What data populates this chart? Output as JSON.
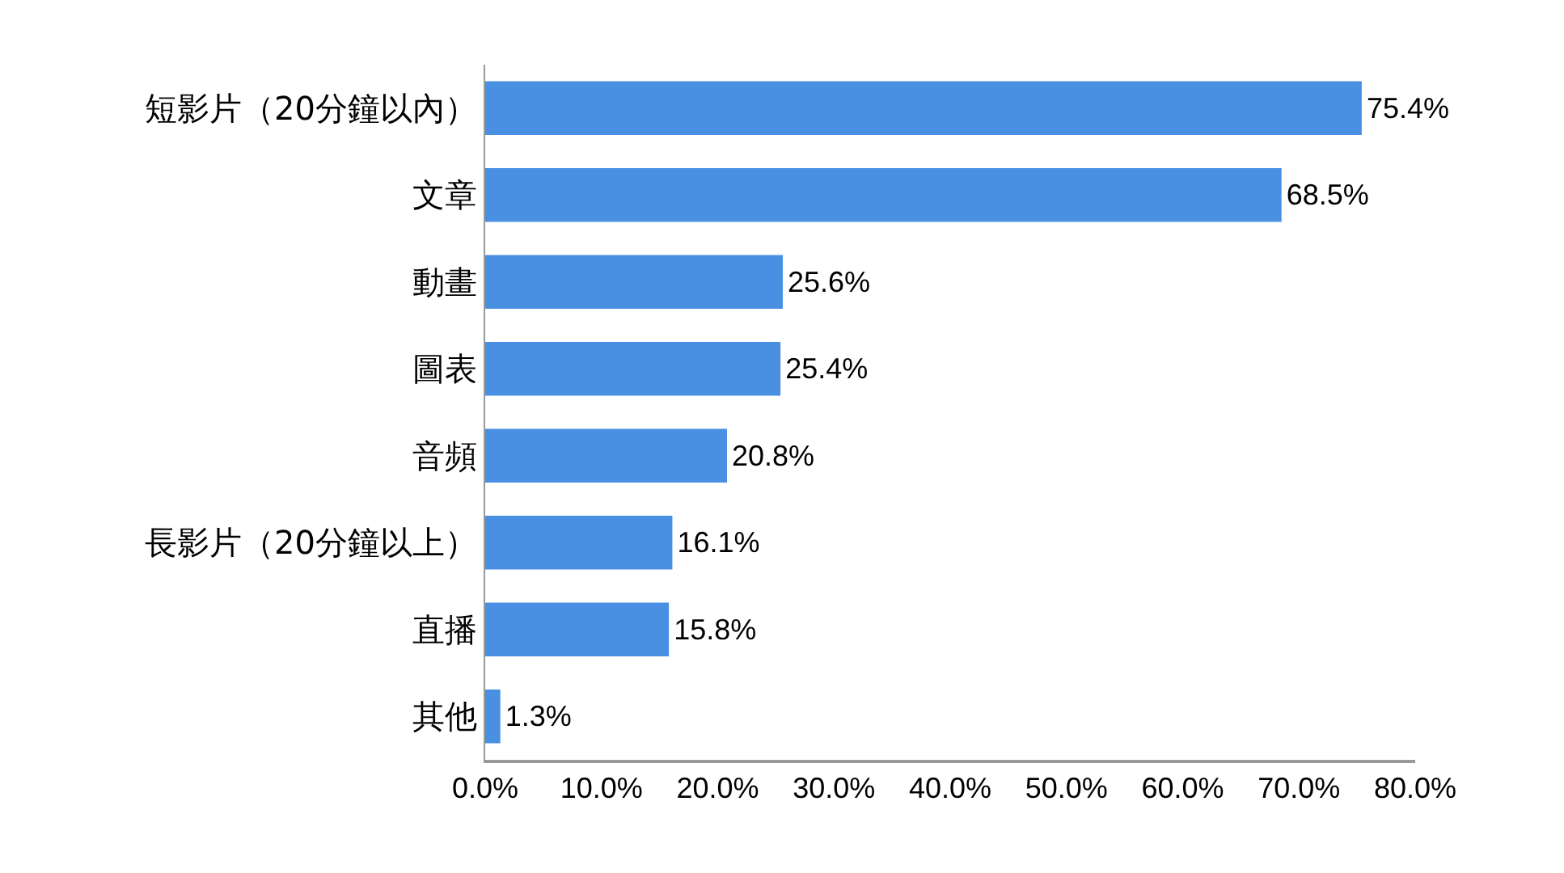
{
  "chart_data": {
    "type": "bar",
    "orientation": "horizontal",
    "categories": [
      "短影片（20分鐘以內）",
      "文章",
      "動畫",
      "圖表",
      "音頻",
      "長影片（20分鐘以上）",
      "直播",
      "其他"
    ],
    "values": [
      75.4,
      68.5,
      25.6,
      25.4,
      20.8,
      16.1,
      15.8,
      1.3
    ],
    "value_labels": [
      "75.4%",
      "68.5%",
      "25.6%",
      "25.4%",
      "20.8%",
      "16.1%",
      "15.8%",
      "1.3%"
    ],
    "color": "#4a90e2",
    "xlim": [
      0,
      80
    ],
    "xticks": [
      {
        "value": 0,
        "label": "0.0%"
      },
      {
        "value": 10,
        "label": "10.0%"
      },
      {
        "value": 20,
        "label": "20.0%"
      },
      {
        "value": 30,
        "label": "30.0%"
      },
      {
        "value": 40,
        "label": "40.0%"
      },
      {
        "value": 50,
        "label": "50.0%"
      },
      {
        "value": 60,
        "label": "60.0%"
      },
      {
        "value": 70,
        "label": "70.0%"
      },
      {
        "value": 80,
        "label": "80.0%"
      }
    ],
    "grid": false
  }
}
